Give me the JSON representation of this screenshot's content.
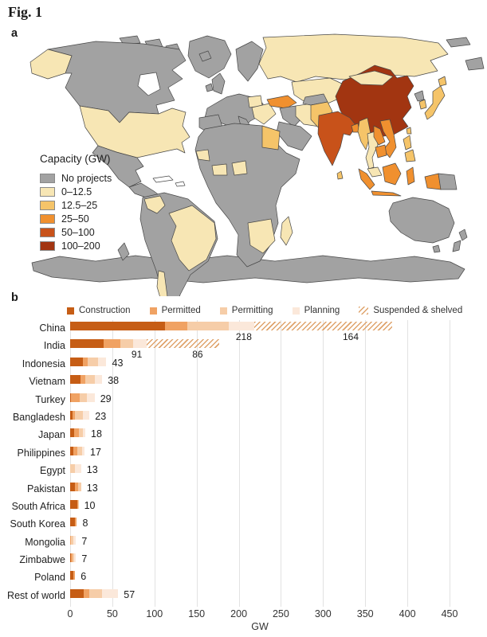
{
  "figure": {
    "label": "Fig. 1",
    "panel_a": "a",
    "panel_b": "b"
  },
  "map_panel": {
    "legend_title": "Capacity (GW)",
    "border_color": "#474747",
    "categories": [
      {
        "label": "No projects",
        "color": "#a2a2a2"
      },
      {
        "label": "0–12.5",
        "color": "#f7e6b4"
      },
      {
        "label": "12.5–25",
        "color": "#f5c469"
      },
      {
        "label": "25–50",
        "color": "#f0902f"
      },
      {
        "label": "50–100",
        "color": "#c8521a"
      },
      {
        "label": "100–200",
        "color": "#a23511"
      }
    ]
  },
  "chart_data": {
    "type": "bar",
    "orientation": "horizontal",
    "xlabel": "GW",
    "xlim": [
      0,
      450
    ],
    "xticks": [
      0,
      50,
      100,
      150,
      200,
      250,
      300,
      350,
      400,
      450
    ],
    "grid": true,
    "legend_position": "top",
    "series": [
      {
        "name": "Construction",
        "color": "#c65d15"
      },
      {
        "name": "Permitted",
        "color": "#f0a263"
      },
      {
        "name": "Permitting",
        "color": "#f6cda8"
      },
      {
        "name": "Planning",
        "color": "#fbe8da"
      },
      {
        "name": "Suspended & shelved",
        "color": "#dfa36b",
        "style": "hatched"
      }
    ],
    "rows": [
      {
        "country": "China",
        "values": [
          112,
          27,
          49,
          30,
          164
        ],
        "active_total_label": "218",
        "suspended_label": "164"
      },
      {
        "country": "India",
        "values": [
          40,
          20,
          15,
          16,
          86
        ],
        "active_total_label": "91",
        "suspended_label": "86"
      },
      {
        "country": "Indonesia",
        "values": [
          15,
          6,
          12,
          10,
          0
        ],
        "active_total_label": "43"
      },
      {
        "country": "Vietnam",
        "values": [
          12,
          6,
          11,
          9,
          0
        ],
        "active_total_label": "38"
      },
      {
        "country": "Turkey",
        "values": [
          1,
          10,
          9,
          9,
          0
        ],
        "active_total_label": "29"
      },
      {
        "country": "Bangladesh",
        "values": [
          3,
          3,
          9,
          8,
          0
        ],
        "active_total_label": "23"
      },
      {
        "country": "Japan",
        "values": [
          5,
          5,
          5,
          3,
          0
        ],
        "active_total_label": "18"
      },
      {
        "country": "Philippines",
        "values": [
          4,
          5,
          5,
          3,
          0
        ],
        "active_total_label": "17"
      },
      {
        "country": "Egypt",
        "values": [
          0,
          0,
          6,
          7,
          0
        ],
        "active_total_label": "13"
      },
      {
        "country": "Pakistan",
        "values": [
          6,
          4,
          3,
          0,
          0
        ],
        "active_total_label": "13"
      },
      {
        "country": "South Africa",
        "values": [
          8,
          1,
          1,
          0,
          0
        ],
        "active_total_label": "10"
      },
      {
        "country": "South Korea",
        "values": [
          6,
          2,
          0,
          0,
          0
        ],
        "active_total_label": "8"
      },
      {
        "country": "Mongolia",
        "values": [
          0,
          1,
          3,
          3,
          0
        ],
        "active_total_label": "7"
      },
      {
        "country": "Zimbabwe",
        "values": [
          1,
          2,
          2,
          2,
          0
        ],
        "active_total_label": "7"
      },
      {
        "country": "Poland",
        "values": [
          4,
          2,
          0,
          0,
          0
        ],
        "active_total_label": "6"
      },
      {
        "country": "Rest of world",
        "values": [
          16,
          7,
          15,
          19,
          0
        ],
        "active_total_label": "57"
      }
    ]
  }
}
